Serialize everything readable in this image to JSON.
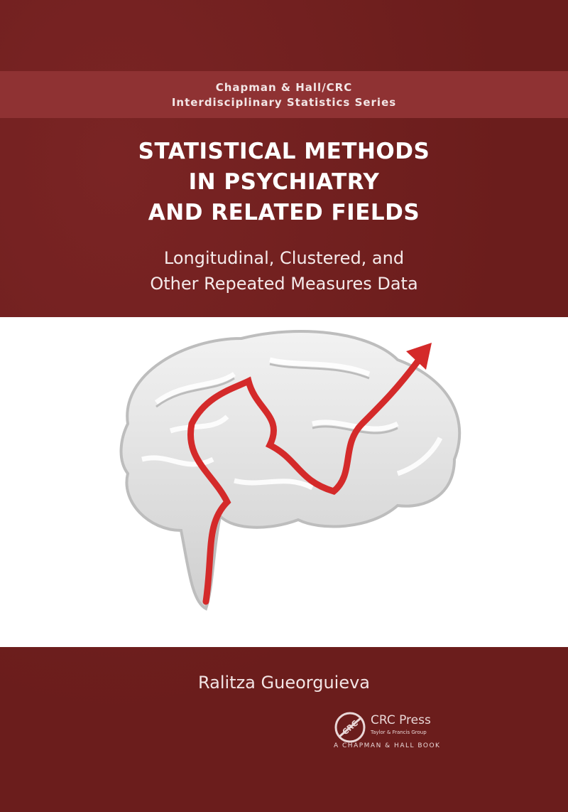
{
  "series": {
    "line1": "Chapman & Hall/CRC",
    "line2": "Interdisciplinary Statistics Series"
  },
  "title": {
    "line1": "STATISTICAL METHODS",
    "line2": "IN PSYCHIATRY",
    "line3": "AND RELATED FIELDS"
  },
  "subtitle": {
    "line1": "Longitudinal, Clustered, and",
    "line2": "Other Repeated Measures Data"
  },
  "author": "Ralitza Gueorguieva",
  "publisher": {
    "logo_text": "CRC",
    "name": "CRC Press",
    "group": "Taylor & Francis Group",
    "imprint": "A CHAPMAN & HALL BOOK"
  },
  "colors": {
    "background": "#6b1d1c",
    "band": "#8f3233",
    "maze_path": "#d42a2a"
  }
}
